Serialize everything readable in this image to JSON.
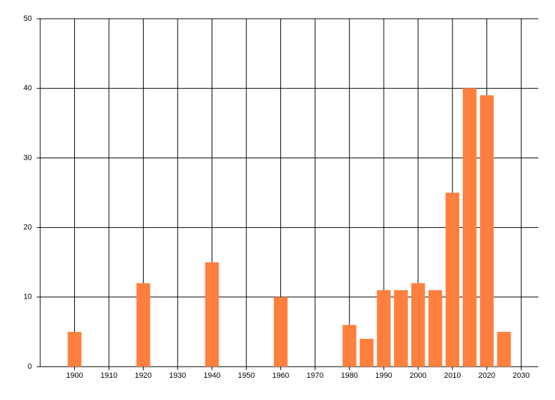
{
  "chart_data": {
    "type": "bar",
    "x": [
      1900,
      1920,
      1940,
      1960,
      1980,
      1985,
      1990,
      1995,
      2000,
      2005,
      2010,
      2015,
      2020,
      2025
    ],
    "values": [
      5,
      12,
      15,
      10,
      6,
      4,
      11,
      11,
      12,
      11,
      25,
      40,
      39,
      5
    ],
    "color": "#ff7f3f",
    "xlim": [
      1890,
      2035
    ],
    "xticks": [
      1900,
      1910,
      1920,
      1930,
      1940,
      1950,
      1960,
      1970,
      1980,
      1990,
      2000,
      2010,
      2020,
      2030
    ],
    "ylim": [
      0,
      50
    ],
    "yticks": [
      0,
      10,
      20,
      30,
      40,
      50
    ],
    "grid": true
  }
}
